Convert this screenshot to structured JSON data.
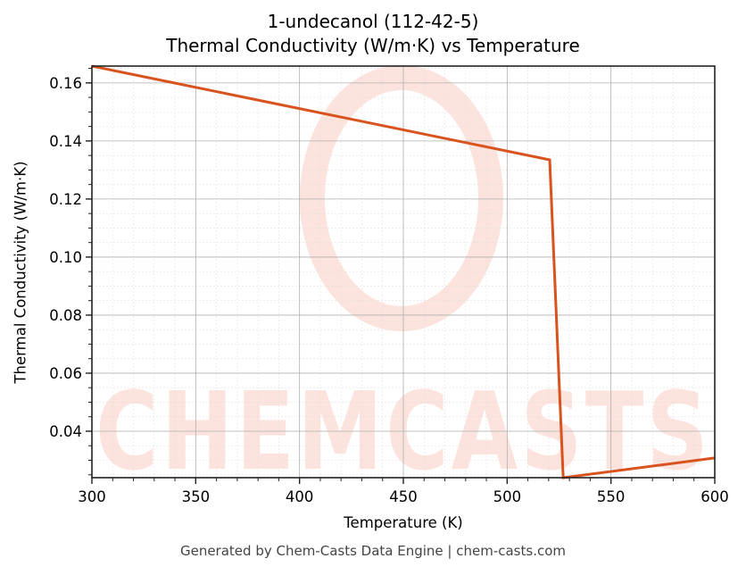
{
  "chart_data": {
    "type": "line",
    "title": "1-undecanol (112-42-5)",
    "subtitle": "Thermal Conductivity (W/m·K) vs Temperature",
    "xlabel": "Temperature (K)",
    "ylabel": "Thermal Conductivity (W/m·K)",
    "xlim": [
      300,
      600
    ],
    "ylim": [
      0.024,
      0.1658
    ],
    "x_ticks": [
      300,
      350,
      400,
      450,
      500,
      550,
      600
    ],
    "y_ticks": [
      0.04,
      0.06,
      0.08,
      0.1,
      0.12,
      0.14,
      0.16
    ],
    "x_tick_labels": [
      "300",
      "350",
      "400",
      "450",
      "500",
      "550",
      "600"
    ],
    "y_tick_labels": [
      "0.04",
      "0.06",
      "0.08",
      "0.10",
      "0.12",
      "0.14",
      "0.16"
    ],
    "grid": true,
    "legend": null,
    "series": [
      {
        "name": "Thermal Conductivity",
        "color": "#d9531e",
        "x": [
          300,
          520.5,
          527,
          600
        ],
        "y": [
          0.1658,
          0.1335,
          0.024,
          0.0308
        ]
      }
    ],
    "watermark": "CHEMCASTS",
    "footer": "Generated by Chem-Casts Data Engine | chem-casts.com"
  },
  "header": {
    "title": "1-undecanol (112-42-5)",
    "subtitle": "Thermal Conductivity (W/m·K) vs Temperature"
  },
  "axes": {
    "xlabel": "Temperature (K)",
    "ylabel": "Thermal Conductivity (W/m·K)"
  },
  "footer": {
    "text": "Generated by Chem-Casts Data Engine | chem-casts.com"
  },
  "colors": {
    "line": "#d9531e",
    "watermark": "#fde3dd",
    "grid_major": "#b0b0b0",
    "grid_minor": "#e0e0e0"
  }
}
